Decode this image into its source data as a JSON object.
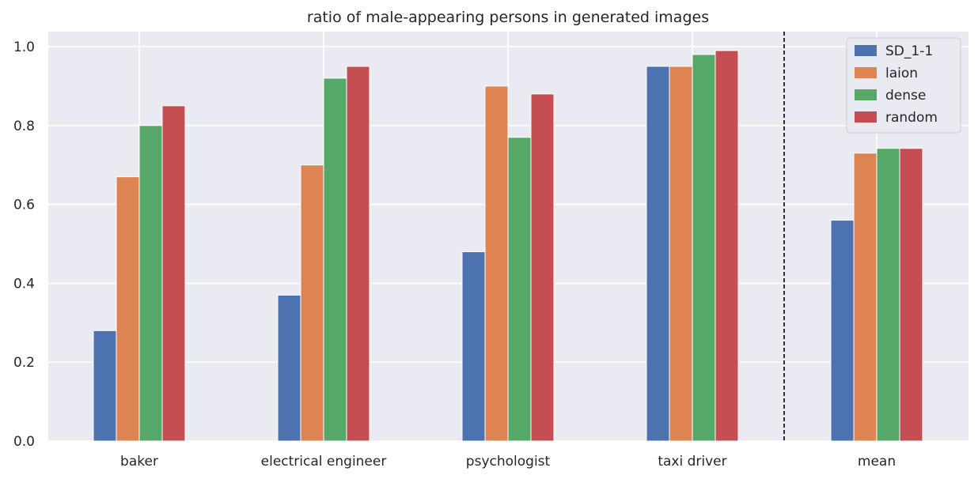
{
  "chart_data": {
    "type": "bar",
    "title": "ratio of male-appearing persons in generated images",
    "xlabel": "",
    "ylabel": "",
    "ylim": [
      0,
      1.04
    ],
    "yticks": [
      "0.0",
      "0.2",
      "0.4",
      "0.6",
      "0.8",
      "1.0"
    ],
    "ytick_values": [
      0,
      0.2,
      0.4,
      0.6,
      0.8,
      1.0
    ],
    "categories": [
      "baker",
      "electrical engineer",
      "psychologist",
      "taxi driver",
      "mean"
    ],
    "series": [
      {
        "name": "SD_1-1",
        "color": "#4c72b0",
        "values": [
          0.28,
          0.37,
          0.48,
          0.95,
          0.56
        ]
      },
      {
        "name": "laion",
        "color": "#dd8452",
        "values": [
          0.67,
          0.7,
          0.9,
          0.95,
          0.73
        ]
      },
      {
        "name": "dense",
        "color": "#55a868",
        "values": [
          0.8,
          0.92,
          0.77,
          0.98,
          0.742
        ]
      },
      {
        "name": "random",
        "color": "#c44e52",
        "values": [
          0.85,
          0.95,
          0.88,
          0.99,
          0.742
        ]
      }
    ],
    "separator": "dashed line between taxi driver and mean",
    "legend_position": "top-right",
    "grid": true,
    "background": "#eaeaf2"
  }
}
